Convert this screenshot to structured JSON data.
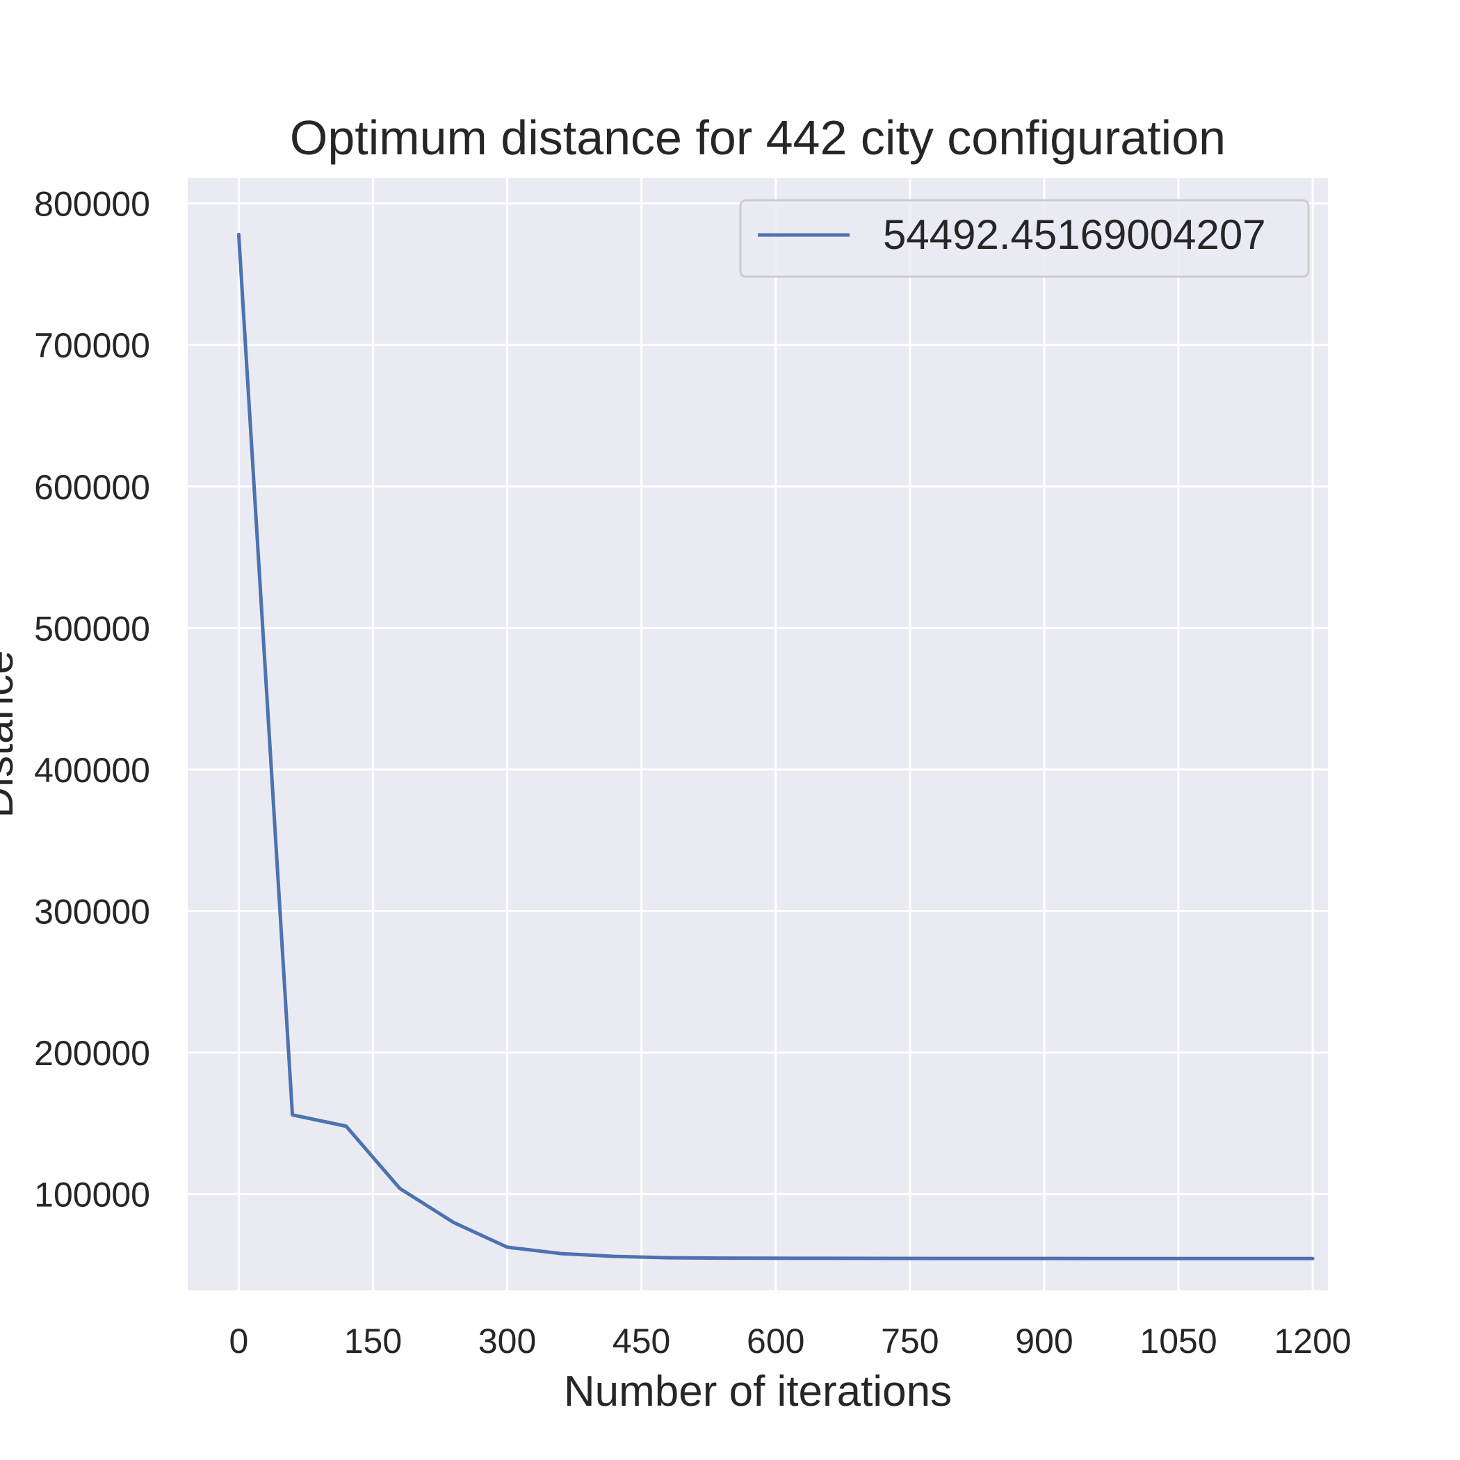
{
  "chart_data": {
    "type": "line",
    "title": "Optimum distance for 442 city configuration",
    "xlabel": "Number of iterations",
    "ylabel": "Distance",
    "xlim": [
      -57,
      1217
    ],
    "ylim": [
      32000,
      818000
    ],
    "x_ticks": [
      0,
      150,
      300,
      450,
      600,
      750,
      900,
      1050,
      1200
    ],
    "x_tick_labels": [
      "0",
      "150",
      "300",
      "450",
      "600",
      "750",
      "900",
      "1050",
      "1200"
    ],
    "y_ticks": [
      100000,
      200000,
      300000,
      400000,
      500000,
      600000,
      700000,
      800000
    ],
    "y_tick_labels": [
      "100000",
      "200000",
      "300000",
      "400000",
      "500000",
      "600000",
      "700000",
      "800000"
    ],
    "grid": true,
    "legend_position": "top-right",
    "colors": {
      "background": "#eaeaf2",
      "grid": "#ffffff",
      "line": "#4c72b0"
    },
    "series": [
      {
        "name": "54492.45169004207",
        "x": [
          0,
          60,
          120,
          180,
          240,
          300,
          360,
          420,
          480,
          540,
          600,
          660,
          720,
          780,
          840,
          900,
          960,
          1020,
          1080,
          1140,
          1200
        ],
        "values": [
          778000,
          156000,
          148000,
          104000,
          80000,
          62500,
          58000,
          56000,
          55000,
          54800,
          54700,
          54650,
          54600,
          54550,
          54530,
          54510,
          54500,
          54495,
          54493,
          54493,
          54492.45169004207
        ]
      }
    ]
  }
}
